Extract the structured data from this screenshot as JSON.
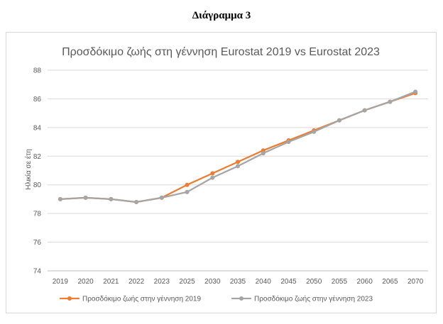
{
  "document": {
    "caption": "Διάγραμμα 3"
  },
  "chart_data": {
    "type": "line",
    "title": "Προσδόκιμο ζωής στη γέννηση Eurostat 2019 vs Eurostat 2023",
    "xlabel": "",
    "ylabel": "Ηλικία σε έτη",
    "categories": [
      "2019",
      "2020",
      "2021",
      "2022",
      "2023",
      "2025",
      "2030",
      "2035",
      "2040",
      "2045",
      "2050",
      "2055",
      "2060",
      "2065",
      "2070"
    ],
    "ylim": [
      74,
      88
    ],
    "yticks": [
      74,
      76,
      78,
      80,
      82,
      84,
      86,
      88
    ],
    "grid": true,
    "legend_position": "bottom",
    "series": [
      {
        "name": "Προσδόκιμο ζωής στην γέννηση 2019",
        "color": "#ed7d31",
        "values": [
          79.0,
          79.1,
          79.0,
          78.8,
          79.1,
          80.0,
          80.8,
          81.6,
          82.4,
          83.1,
          83.8,
          84.5,
          85.2,
          85.8,
          86.4
        ]
      },
      {
        "name": "Προσδόκιμο ζωής στην γέννηση 2023",
        "color": "#a5a5a5",
        "values": [
          79.0,
          79.1,
          79.0,
          78.8,
          79.1,
          79.5,
          80.5,
          81.3,
          82.2,
          83.0,
          83.7,
          84.5,
          85.2,
          85.8,
          86.5
        ]
      }
    ]
  }
}
